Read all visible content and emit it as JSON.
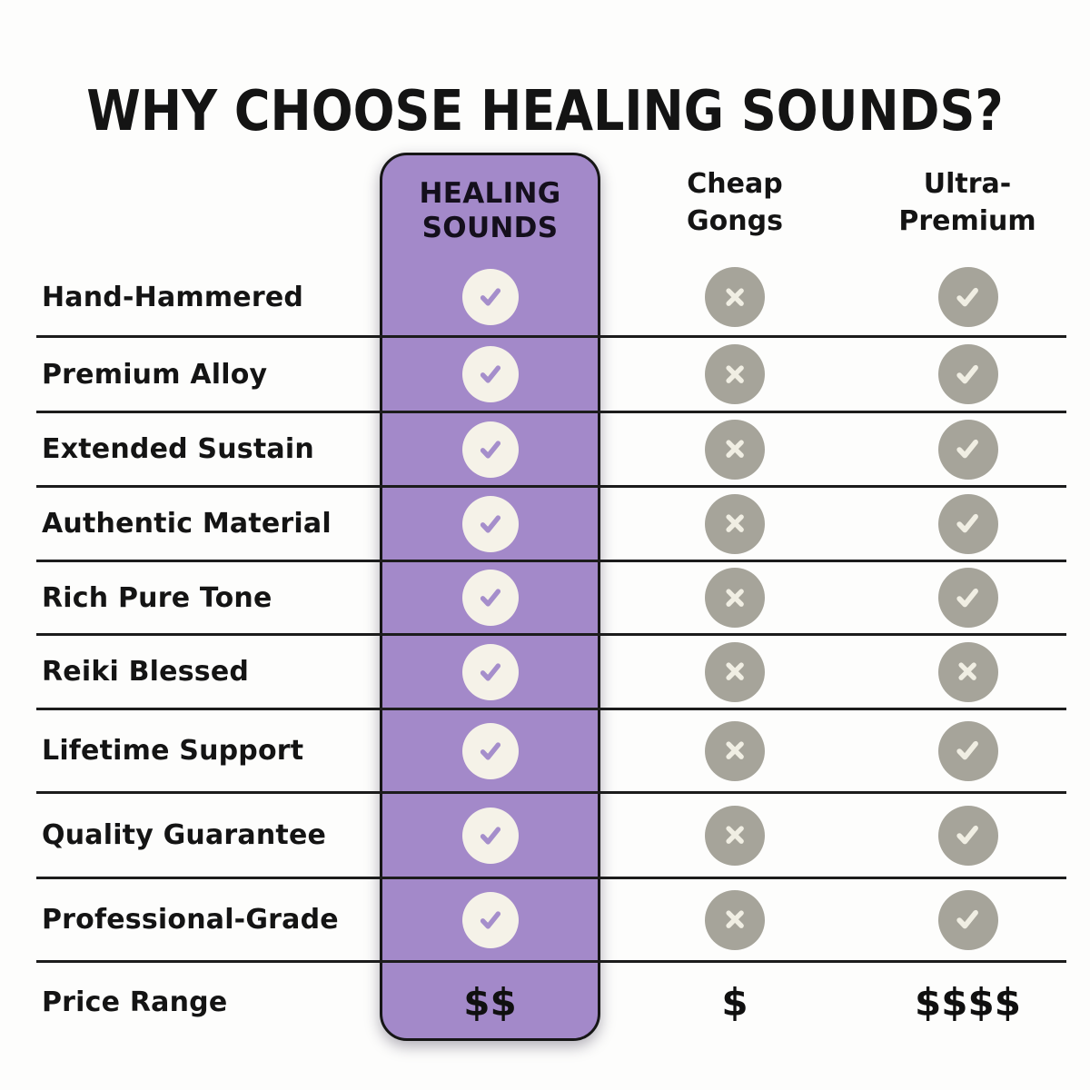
{
  "title": "WHY CHOOSE HEALING SOUNDS?",
  "colors": {
    "background": "#fdfdfc",
    "text": "#141414",
    "line": "#1c1c1c",
    "highlight": "#a389c9",
    "cream": "#f5f2e8",
    "check_on_highlight": "#a58ecb",
    "gray": "#a6a49a",
    "mark_on_gray": "#f0eee3"
  },
  "icons": {
    "check": "check-icon",
    "cross": "cross-icon"
  },
  "chart_data": {
    "type": "table",
    "title": "WHY CHOOSE HEALING SOUNDS?",
    "columns": [
      {
        "id": "healing",
        "label": "HEALING\nSOUNDS",
        "highlight": true
      },
      {
        "id": "cheap",
        "label": "Cheap\nGongs",
        "highlight": false
      },
      {
        "id": "ultra",
        "label": "Ultra-\nPremium",
        "highlight": false
      }
    ],
    "rows": [
      {
        "label": "Hand-Hammered",
        "values": {
          "healing": "check",
          "cheap": "cross",
          "ultra": "check"
        }
      },
      {
        "label": "Premium Alloy",
        "values": {
          "healing": "check",
          "cheap": "cross",
          "ultra": "check"
        }
      },
      {
        "label": "Extended Sustain",
        "values": {
          "healing": "check",
          "cheap": "cross",
          "ultra": "check"
        }
      },
      {
        "label": "Authentic Material",
        "values": {
          "healing": "check",
          "cheap": "cross",
          "ultra": "check"
        }
      },
      {
        "label": "Rich Pure Tone",
        "values": {
          "healing": "check",
          "cheap": "cross",
          "ultra": "check"
        }
      },
      {
        "label": "Reiki Blessed",
        "values": {
          "healing": "check",
          "cheap": "cross",
          "ultra": "cross"
        }
      },
      {
        "label": "Lifetime Support",
        "values": {
          "healing": "check",
          "cheap": "cross",
          "ultra": "check"
        }
      },
      {
        "label": "Quality Guarantee",
        "values": {
          "healing": "check",
          "cheap": "cross",
          "ultra": "check"
        }
      },
      {
        "label": "Professional-Grade",
        "values": {
          "healing": "check",
          "cheap": "cross",
          "ultra": "check"
        }
      },
      {
        "label": "Price Range",
        "values": {
          "healing": "$$",
          "cheap": "$",
          "ultra": "$$$$"
        }
      }
    ]
  }
}
